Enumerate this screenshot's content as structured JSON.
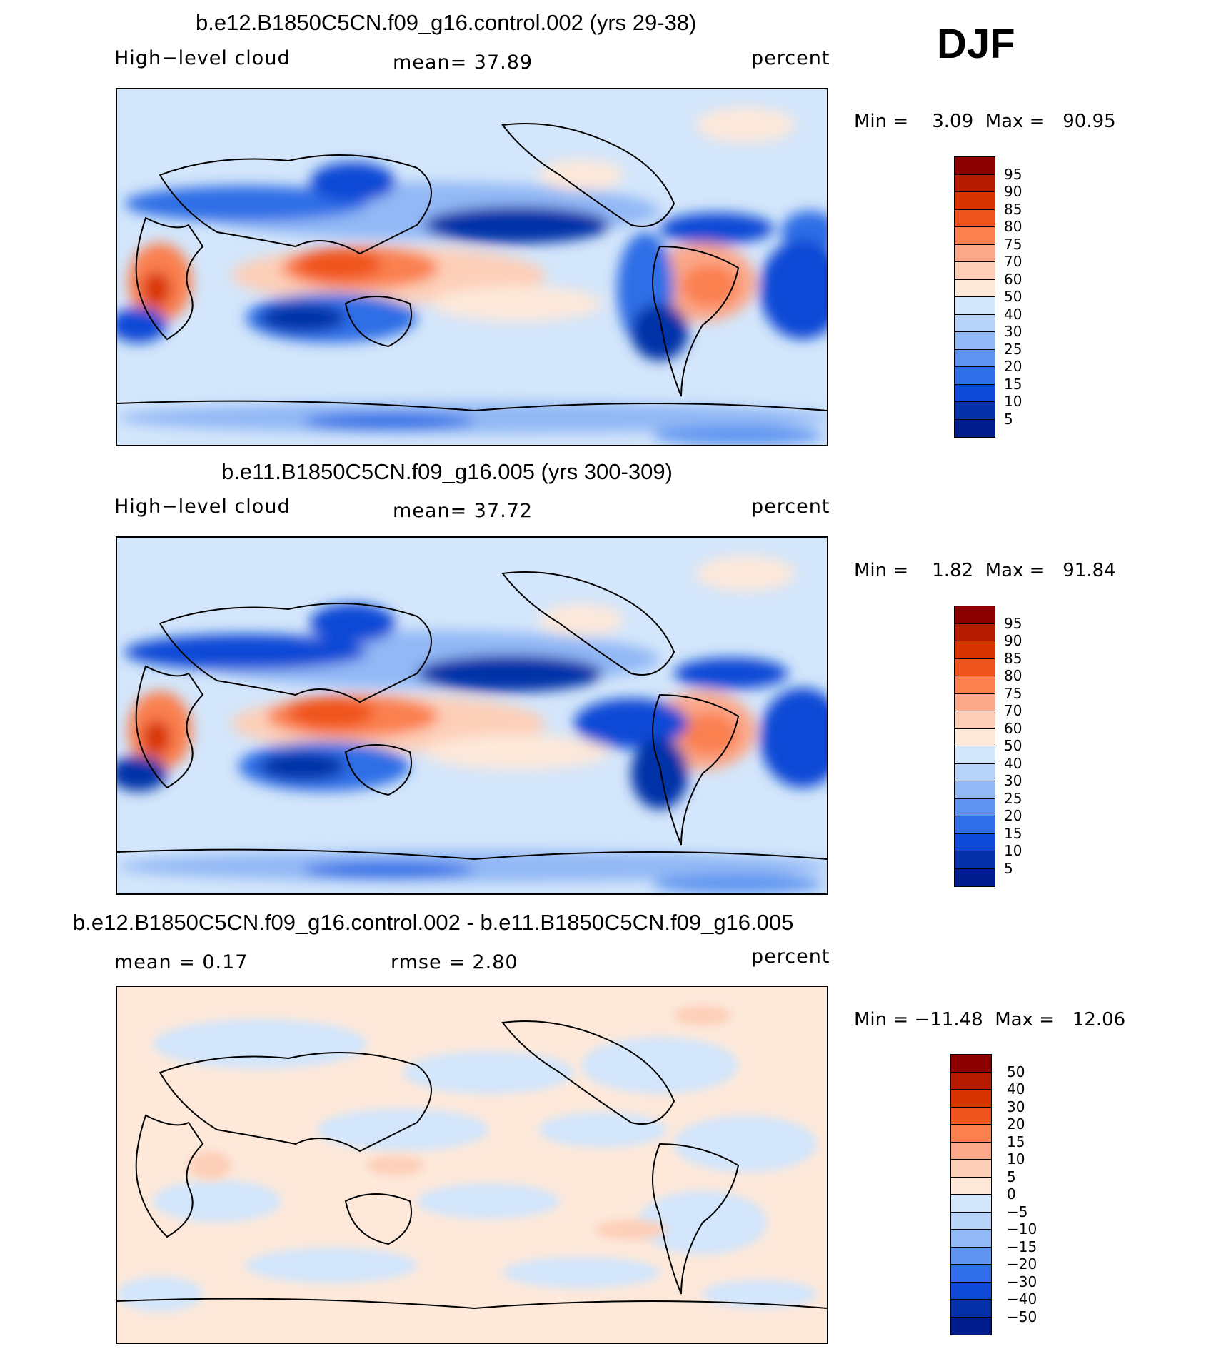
{
  "season": "DJF",
  "panels": [
    {
      "title": "b.e12.B1850C5CN.f09_g16.control.002 (yrs 29-38)",
      "left_label": "High−level cloud",
      "stat": "mean=   37.89",
      "units": "percent",
      "minmax": "Min =    3.09  Max =   90.95",
      "kind": "cloud"
    },
    {
      "title": "b.e11.B1850C5CN.f09_g16.005 (yrs 300-309)",
      "left_label": "High−level cloud",
      "stat": "mean=   37.72",
      "units": "percent",
      "minmax": "Min =    1.82  Max =   91.84",
      "kind": "cloud"
    },
    {
      "title": "b.e12.B1850C5CN.f09_g16.control.002 - b.e11.B1850C5CN.f09_g16.005",
      "left_label": "mean =    0.17",
      "stat": "rmse =    2.80",
      "units": "percent",
      "minmax": "Min = −11.48  Max =   12.06",
      "kind": "diff"
    }
  ],
  "colorbars": {
    "cloud": {
      "labels": [
        "95",
        "90",
        "85",
        "80",
        "75",
        "70",
        "60",
        "50",
        "40",
        "30",
        "25",
        "20",
        "15",
        "10",
        "5"
      ],
      "colors": [
        "#8b0000",
        "#b41b00",
        "#d83400",
        "#f0541e",
        "#fa8050",
        "#fca88a",
        "#fdcfb8",
        "#fde8da",
        "#d3e6fb",
        "#b8d3f8",
        "#92b8f5",
        "#5f95f0",
        "#2f6ee6",
        "#0d48d6",
        "#0530a8",
        "#001b8c"
      ]
    },
    "diff": {
      "labels": [
        "50",
        "40",
        "30",
        "20",
        "15",
        "10",
        "5",
        "0",
        "−5",
        "−10",
        "−15",
        "−20",
        "−30",
        "−40",
        "−50"
      ],
      "colors": [
        "#8b0000",
        "#b41b00",
        "#d83400",
        "#f0541e",
        "#fa8050",
        "#fca88a",
        "#fdcfb8",
        "#fde8da",
        "#d3e6fb",
        "#b8d3f8",
        "#92b8f5",
        "#5f95f0",
        "#2f6ee6",
        "#0d48d6",
        "#0530a8",
        "#001b8c"
      ]
    }
  }
}
